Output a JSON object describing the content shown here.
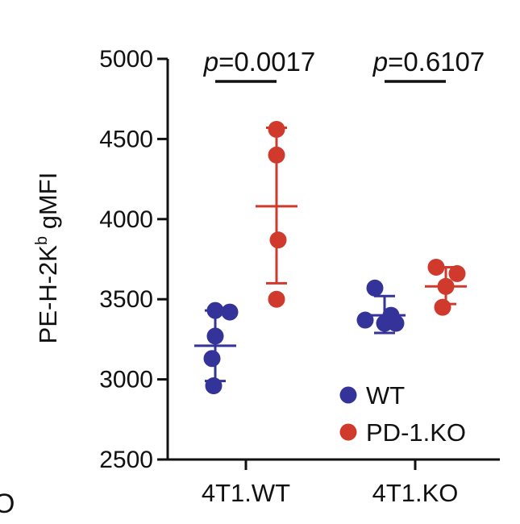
{
  "chart_data": {
    "type": "scatter",
    "ylabel": {
      "main": "PE-H-2K",
      "sup": "b",
      "rest": " gMFI"
    },
    "ylim": [
      2500,
      5000
    ],
    "yticks": [
      2500,
      3000,
      3500,
      4000,
      4500,
      5000
    ],
    "categories": [
      "4T1.WT",
      "4T1.KO"
    ],
    "series": [
      {
        "name": "WT",
        "color": "#33339a",
        "points": [
          [
            3430,
            3420,
            3270,
            3130,
            2960
          ],
          [
            3570,
            3370,
            3350,
            3350,
            3400
          ]
        ],
        "mean": [
          3210,
          3400
        ],
        "sd_upper": [
          3430,
          3520
        ],
        "sd_lower": [
          2990,
          3290
        ]
      },
      {
        "name": "PD-1.KO",
        "color": "#cf3a2d",
        "points": [
          [
            4560,
            4400,
            3870,
            3500
          ],
          [
            3700,
            3660,
            3580,
            3450
          ]
        ],
        "mean": [
          4080,
          3580
        ],
        "sd_upper": [
          4570,
          3700
        ],
        "sd_lower": [
          3600,
          3470
        ]
      }
    ],
    "annotations": [
      {
        "label": "p",
        "value": "=0.0017",
        "group": 0
      },
      {
        "label": "p",
        "value": "=0.6107",
        "group": 1
      }
    ],
    "legend_position": "bottom-right",
    "grid": false
  },
  "corner_label": "O"
}
